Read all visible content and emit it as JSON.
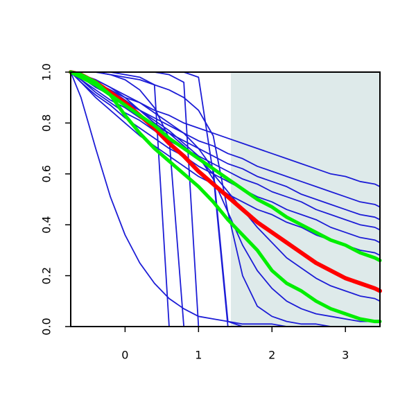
{
  "chart_data": {
    "type": "line",
    "x": [
      -0.74,
      -0.6,
      -0.4,
      -0.2,
      0,
      0.2,
      0.4,
      0.6,
      0.8,
      1.0,
      1.2,
      1.4,
      1.6,
      1.8,
      2.0,
      2.2,
      2.4,
      2.6,
      2.8,
      3.0,
      3.2,
      3.4,
      3.47
    ],
    "xlim": [
      -0.74,
      3.47
    ],
    "xticks": [
      0,
      1,
      2,
      3
    ],
    "ylim": [
      0,
      1
    ],
    "yticks": [
      {
        "value": 0,
        "label": "0.0"
      },
      {
        "value": 0.2,
        "label": "0.2"
      },
      {
        "value": 0.4,
        "label": "0.4"
      },
      {
        "value": 0.6,
        "label": "0.6"
      },
      {
        "value": 0.8,
        "label": "0.8"
      },
      {
        "value": 1,
        "label": "1.0"
      }
    ],
    "shaded_region": {
      "x": [
        1.44,
        3.47
      ],
      "y": [
        0,
        1
      ],
      "color": "#deeaea"
    },
    "series": [
      {
        "color": "#1c1cd6",
        "line_width": 1.8,
        "values": [
          1,
          0.98,
          0.95,
          0.93,
          0.9,
          0.88,
          0.85,
          0.83,
          0.8,
          0.78,
          0.76,
          0.74,
          0.72,
          0.7,
          0.68,
          0.66,
          0.64,
          0.62,
          0.6,
          0.59,
          0.57,
          0.56,
          0.55
        ]
      },
      {
        "color": "#1c1cd6",
        "line_width": 1.8,
        "values": [
          1,
          0.98,
          0.94,
          0.91,
          0.88,
          0.85,
          0.82,
          0.79,
          0.76,
          0.73,
          0.71,
          0.68,
          0.66,
          0.63,
          0.61,
          0.59,
          0.57,
          0.55,
          0.53,
          0.51,
          0.49,
          0.48,
          0.47
        ]
      },
      {
        "color": "#1c1cd6",
        "line_width": 1.8,
        "values": [
          1,
          0.97,
          0.93,
          0.89,
          0.86,
          0.82,
          0.79,
          0.76,
          0.73,
          0.7,
          0.67,
          0.64,
          0.62,
          0.59,
          0.57,
          0.55,
          0.52,
          0.5,
          0.48,
          0.46,
          0.44,
          0.43,
          0.42
        ]
      },
      {
        "color": "#1c1cd6",
        "line_width": 1.8,
        "values": [
          1,
          0.97,
          0.92,
          0.88,
          0.84,
          0.81,
          0.77,
          0.73,
          0.7,
          0.67,
          0.64,
          0.61,
          0.58,
          0.56,
          0.53,
          0.51,
          0.49,
          0.46,
          0.44,
          0.42,
          0.4,
          0.39,
          0.38
        ]
      },
      {
        "color": "#1c1cd6",
        "line_width": 1.8,
        "values": [
          1,
          0.96,
          0.91,
          0.87,
          0.82,
          0.78,
          0.74,
          0.7,
          0.67,
          0.63,
          0.6,
          0.57,
          0.54,
          0.51,
          0.49,
          0.46,
          0.44,
          0.42,
          0.39,
          0.37,
          0.35,
          0.34,
          0.33
        ]
      },
      {
        "color": "#1c1cd6",
        "line_width": 1.8,
        "values": [
          1,
          0.96,
          0.9,
          0.85,
          0.8,
          0.75,
          0.71,
          0.67,
          0.63,
          0.59,
          0.56,
          0.52,
          0.49,
          0.46,
          0.44,
          0.41,
          0.39,
          0.36,
          0.34,
          0.32,
          0.3,
          0.29,
          0.28
        ]
      },
      {
        "color": "#1c1cd6",
        "line_width": 1.8,
        "values": [
          1,
          0.9,
          0.7,
          0.51,
          0.36,
          0.25,
          0.17,
          0.11,
          0.07,
          0.04,
          0.03,
          0.02,
          0.01,
          0.01,
          0.01,
          0,
          0,
          0,
          0,
          0,
          0,
          0,
          0
        ]
      },
      {
        "color": "#1c1cd6",
        "line_width": 1.8,
        "values": [
          1,
          1,
          1,
          1,
          0.99,
          0.98,
          0.95,
          0,
          0,
          0,
          0,
          0,
          0,
          0,
          0,
          0,
          0,
          0,
          0,
          0,
          0,
          0,
          0
        ]
      },
      {
        "color": "#1c1cd6",
        "line_width": 1.8,
        "values": [
          1,
          1,
          1,
          0.99,
          0.97,
          0.93,
          0.86,
          0.74,
          0,
          0,
          0,
          0,
          0,
          0,
          0,
          0,
          0,
          0,
          0,
          0,
          0,
          0,
          0
        ]
      },
      {
        "color": "#1c1cd6",
        "line_width": 1.8,
        "values": [
          1,
          1,
          1,
          1,
          1,
          1,
          1,
          0.99,
          0.96,
          0,
          0,
          0,
          0,
          0,
          0,
          0,
          0,
          0,
          0,
          0,
          0,
          0,
          0
        ]
      },
      {
        "color": "#1c1cd6",
        "line_width": 1.8,
        "values": [
          1,
          1,
          1,
          1,
          1,
          1,
          1,
          1,
          1,
          0.98,
          0.6,
          0,
          0,
          0,
          0,
          0,
          0,
          0,
          0,
          0,
          0,
          0,
          0
        ]
      },
      {
        "color": "#1c1cd6",
        "line_width": 1.8,
        "values": [
          1,
          0.99,
          0.97,
          0.94,
          0.91,
          0.88,
          0.84,
          0.8,
          0.76,
          0.7,
          0.62,
          0.02,
          0,
          0,
          0,
          0,
          0,
          0,
          0,
          0,
          0,
          0,
          0
        ]
      },
      {
        "color": "#1c1cd6",
        "line_width": 1.8,
        "values": [
          1,
          1,
          1,
          0.99,
          0.98,
          0.97,
          0.95,
          0.93,
          0.9,
          0.85,
          0.75,
          0.45,
          0.2,
          0.08,
          0.04,
          0.02,
          0.01,
          0.01,
          0,
          0,
          0,
          0,
          0
        ]
      },
      {
        "color": "#1c1cd6",
        "line_width": 1.8,
        "values": [
          1,
          0.99,
          0.97,
          0.94,
          0.9,
          0.85,
          0.8,
          0.76,
          0.71,
          0.66,
          0.6,
          0.53,
          0.46,
          0.39,
          0.33,
          0.27,
          0.23,
          0.19,
          0.16,
          0.14,
          0.12,
          0.11,
          0.1
        ]
      },
      {
        "color": "#1c1cd6",
        "line_width": 1.8,
        "values": [
          1,
          0.99,
          0.96,
          0.93,
          0.89,
          0.85,
          0.81,
          0.77,
          0.72,
          0.67,
          0.58,
          0.45,
          0.32,
          0.22,
          0.15,
          0.1,
          0.07,
          0.05,
          0.04,
          0.03,
          0.02,
          0.02,
          0.02
        ]
      },
      {
        "color": "#ff0000",
        "line_width": 6,
        "values": [
          1,
          0.99,
          0.96,
          0.92,
          0.88,
          0.83,
          0.78,
          0.72,
          0.67,
          0.61,
          0.56,
          0.51,
          0.46,
          0.41,
          0.37,
          0.33,
          0.29,
          0.25,
          0.22,
          0.19,
          0.17,
          0.15,
          0.14
        ]
      },
      {
        "color": "#00ee00",
        "line_width": 5,
        "values": [
          1,
          0.98,
          0.95,
          0.91,
          0.87,
          0.83,
          0.79,
          0.74,
          0.7,
          0.66,
          0.62,
          0.58,
          0.54,
          0.5,
          0.47,
          0.43,
          0.4,
          0.37,
          0.34,
          0.32,
          0.29,
          0.27,
          0.26
        ]
      },
      {
        "color": "#00ee00",
        "line_width": 5,
        "values": [
          1,
          0.99,
          0.96,
          0.91,
          0.83,
          0.76,
          0.7,
          0.65,
          0.6,
          0.55,
          0.49,
          0.42,
          0.36,
          0.3,
          0.22,
          0.17,
          0.14,
          0.1,
          0.07,
          0.05,
          0.03,
          0.02,
          0.02
        ]
      }
    ]
  }
}
